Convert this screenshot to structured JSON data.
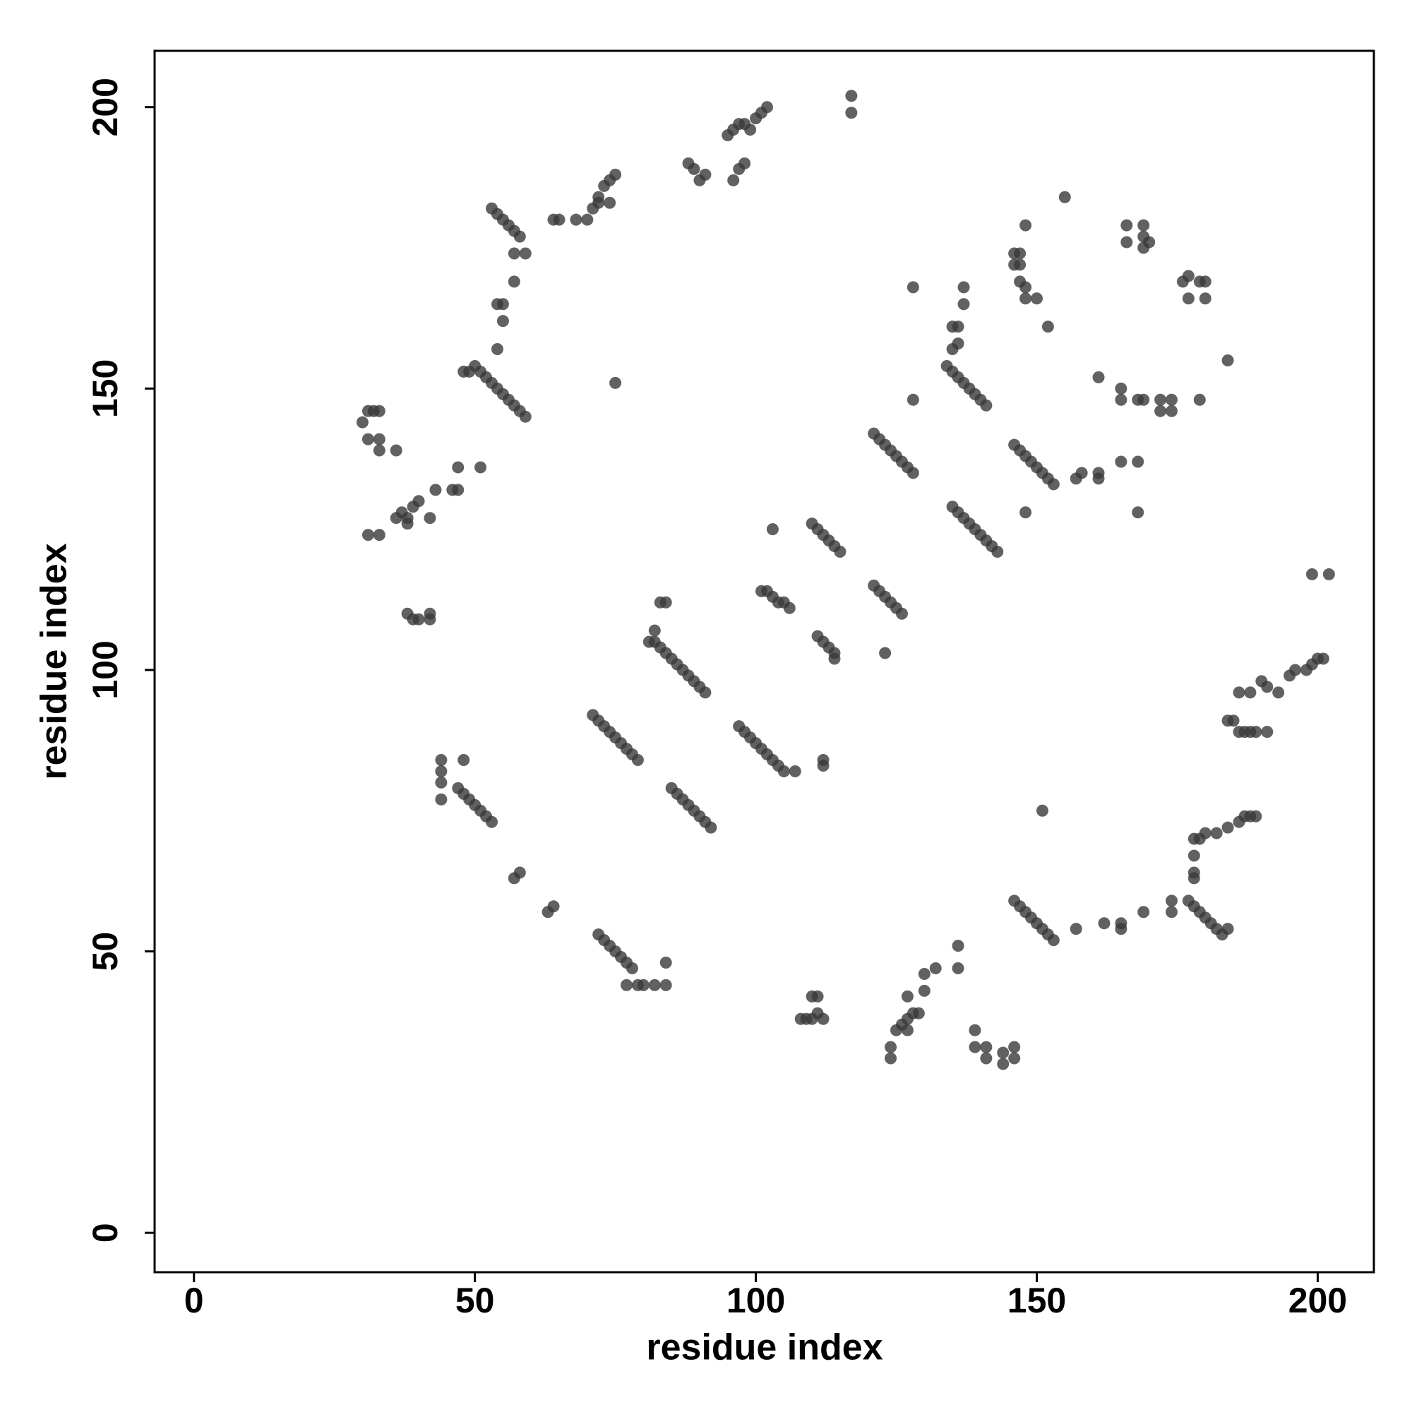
{
  "chart_data": {
    "type": "scatter",
    "x_label": "residue index",
    "y_label": "residue index",
    "xlim": [
      -7,
      210
    ],
    "ylim": [
      -7,
      210
    ],
    "xticks": [
      0,
      50,
      100,
      150,
      200
    ],
    "yticks": [
      0,
      50,
      100,
      150,
      200
    ],
    "color": "#3a3a3a",
    "x": [
      71,
      72,
      73,
      74,
      75,
      76,
      77,
      78,
      79,
      82,
      83,
      84,
      85,
      86,
      87,
      88,
      89,
      90,
      91,
      85,
      86,
      87,
      88,
      89,
      90,
      91,
      92,
      97,
      98,
      99,
      100,
      101,
      102,
      103,
      104,
      105,
      72,
      73,
      74,
      75,
      76,
      77,
      78,
      47,
      48,
      49,
      50,
      51,
      52,
      53,
      51,
      52,
      53,
      54,
      55,
      56,
      57,
      58,
      59,
      53,
      54,
      55,
      56,
      57,
      58,
      121,
      122,
      123,
      124,
      125,
      126,
      127,
      128,
      134,
      135,
      136,
      137,
      138,
      139,
      140,
      141,
      135,
      136,
      137,
      138,
      139,
      140,
      141,
      142,
      143,
      146,
      147,
      148,
      149,
      150,
      151,
      152,
      153,
      146,
      147,
      148,
      149,
      150,
      151,
      152,
      153,
      110,
      111,
      112,
      113,
      114,
      115,
      121,
      122,
      123,
      124,
      125,
      126,
      101,
      102,
      103,
      104,
      105,
      106,
      111,
      112,
      113,
      114,
      114,
      186,
      188,
      190,
      191,
      193,
      195,
      196,
      198,
      199,
      200,
      201,
      178,
      179,
      180,
      182,
      184,
      186,
      187,
      188,
      189,
      178,
      178,
      178,
      177,
      178,
      179,
      180,
      181,
      182,
      183,
      184,
      184,
      185,
      186,
      187,
      188,
      189,
      191,
      70,
      71,
      72,
      72,
      73,
      74,
      75,
      74,
      64,
      65,
      68,
      88,
      89,
      90,
      91,
      96,
      97,
      98,
      95,
      96,
      97,
      98,
      99,
      100,
      101,
      102,
      117,
      117,
      30,
      31,
      32,
      33,
      31,
      33,
      33,
      36,
      31,
      33,
      36,
      37,
      38,
      39,
      40,
      38,
      43,
      46,
      47,
      47,
      51,
      42,
      38,
      39,
      40,
      42,
      42,
      54,
      55,
      55,
      57,
      57,
      59,
      54,
      48,
      49,
      50,
      44,
      44,
      44,
      44,
      48,
      57,
      58,
      63,
      64,
      77,
      79,
      80,
      82,
      84,
      84,
      108,
      109,
      110,
      110,
      111,
      111,
      112,
      124,
      124,
      125,
      126,
      127,
      127,
      128,
      129,
      127,
      130,
      130,
      132,
      136,
      136,
      139,
      139,
      141,
      141,
      144,
      144,
      146,
      146,
      157,
      162,
      165,
      165,
      169,
      174,
      174,
      151,
      107,
      112,
      112,
      123,
      103,
      75,
      128,
      128,
      135,
      136,
      136,
      137,
      137,
      135,
      146,
      146,
      147,
      147,
      147,
      148,
      148,
      150,
      152,
      148,
      155,
      148,
      157,
      158,
      161,
      161,
      165,
      168,
      161,
      165,
      165,
      168,
      169,
      172,
      172,
      174,
      174,
      179,
      168,
      166,
      166,
      169,
      169,
      170,
      169,
      176,
      177,
      177,
      179,
      180,
      180,
      184,
      199,
      202,
      83,
      84,
      82,
      81
    ],
    "values": [
      92,
      91,
      90,
      89,
      88,
      87,
      86,
      85,
      84,
      105,
      104,
      103,
      102,
      101,
      100,
      99,
      98,
      97,
      96,
      79,
      78,
      77,
      76,
      75,
      74,
      73,
      72,
      90,
      89,
      88,
      87,
      86,
      85,
      84,
      83,
      82,
      53,
      52,
      51,
      50,
      49,
      48,
      47,
      79,
      78,
      77,
      76,
      75,
      74,
      73,
      153,
      152,
      151,
      150,
      149,
      148,
      147,
      146,
      145,
      182,
      181,
      180,
      179,
      178,
      177,
      142,
      141,
      140,
      139,
      138,
      137,
      136,
      135,
      154,
      153,
      152,
      151,
      150,
      149,
      148,
      147,
      129,
      128,
      127,
      126,
      125,
      124,
      123,
      122,
      121,
      140,
      139,
      138,
      137,
      136,
      135,
      134,
      133,
      59,
      58,
      57,
      56,
      55,
      54,
      53,
      52,
      126,
      125,
      124,
      123,
      122,
      121,
      115,
      114,
      113,
      112,
      111,
      110,
      114,
      114,
      113,
      112,
      112,
      111,
      106,
      105,
      104,
      103,
      102,
      96,
      96,
      98,
      97,
      96,
      99,
      100,
      100,
      101,
      102,
      102,
      70,
      70,
      71,
      71,
      72,
      73,
      74,
      74,
      74,
      67,
      64,
      63,
      59,
      58,
      57,
      56,
      55,
      54,
      53,
      54,
      91,
      91,
      89,
      89,
      89,
      89,
      89,
      180,
      182,
      183,
      184,
      186,
      187,
      188,
      183,
      180,
      180,
      180,
      190,
      189,
      187,
      188,
      187,
      189,
      190,
      195,
      196,
      197,
      197,
      196,
      198,
      199,
      200,
      202,
      199,
      144,
      146,
      146,
      146,
      141,
      141,
      139,
      139,
      124,
      124,
      127,
      128,
      127,
      129,
      130,
      126,
      132,
      132,
      132,
      136,
      136,
      127,
      110,
      109,
      109,
      109,
      110,
      165,
      165,
      162,
      169,
      174,
      174,
      157,
      153,
      153,
      154,
      84,
      82,
      80,
      77,
      84,
      63,
      64,
      57,
      58,
      44,
      44,
      44,
      44,
      44,
      48,
      38,
      38,
      38,
      42,
      42,
      39,
      38,
      33,
      31,
      36,
      37,
      38,
      36,
      39,
      39,
      42,
      43,
      46,
      47,
      47,
      51,
      36,
      33,
      33,
      31,
      30,
      32,
      31,
      33,
      54,
      55,
      55,
      54,
      57,
      59,
      57,
      75,
      82,
      84,
      83,
      103,
      125,
      151,
      168,
      148,
      157,
      158,
      161,
      165,
      168,
      161,
      174,
      172,
      174,
      172,
      169,
      168,
      166,
      166,
      161,
      179,
      184,
      128,
      134,
      135,
      135,
      134,
      137,
      137,
      152,
      150,
      148,
      148,
      148,
      146,
      148,
      146,
      148,
      148,
      128,
      179,
      176,
      179,
      177,
      176,
      175,
      169,
      170,
      166,
      169,
      169,
      166,
      155,
      117,
      117,
      112,
      112,
      107,
      105
    ]
  }
}
